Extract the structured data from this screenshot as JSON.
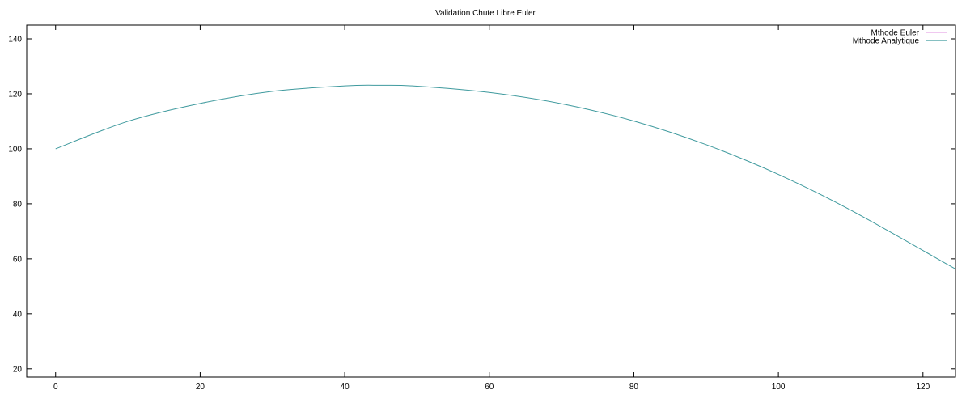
{
  "chart_data": {
    "type": "line",
    "title": "Validation Chute Libre Euler",
    "xlabel": "",
    "ylabel": "",
    "xlim": [
      -4,
      124.5
    ],
    "ylim": [
      17,
      145
    ],
    "xticks": [
      0,
      20,
      40,
      60,
      80,
      100,
      120
    ],
    "yticks": [
      20,
      40,
      60,
      80,
      100,
      120,
      140
    ],
    "grid": false,
    "legend_position": "top-right",
    "series": [
      {
        "name": "Mthode Euler",
        "color": "#e8a8e6",
        "x": [],
        "y": []
      },
      {
        "name": "Mthode Analytique",
        "color": "#3f9a9e",
        "x": [
          0,
          10,
          20,
          30,
          40,
          45,
          50,
          60,
          70,
          80,
          90,
          100,
          110,
          124.5
        ],
        "y": [
          100,
          110,
          116.5,
          120.9,
          122.9,
          123.1,
          122.8,
          120.5,
          116.4,
          110.1,
          101.5,
          90.7,
          77.7,
          56.3
        ]
      }
    ]
  }
}
